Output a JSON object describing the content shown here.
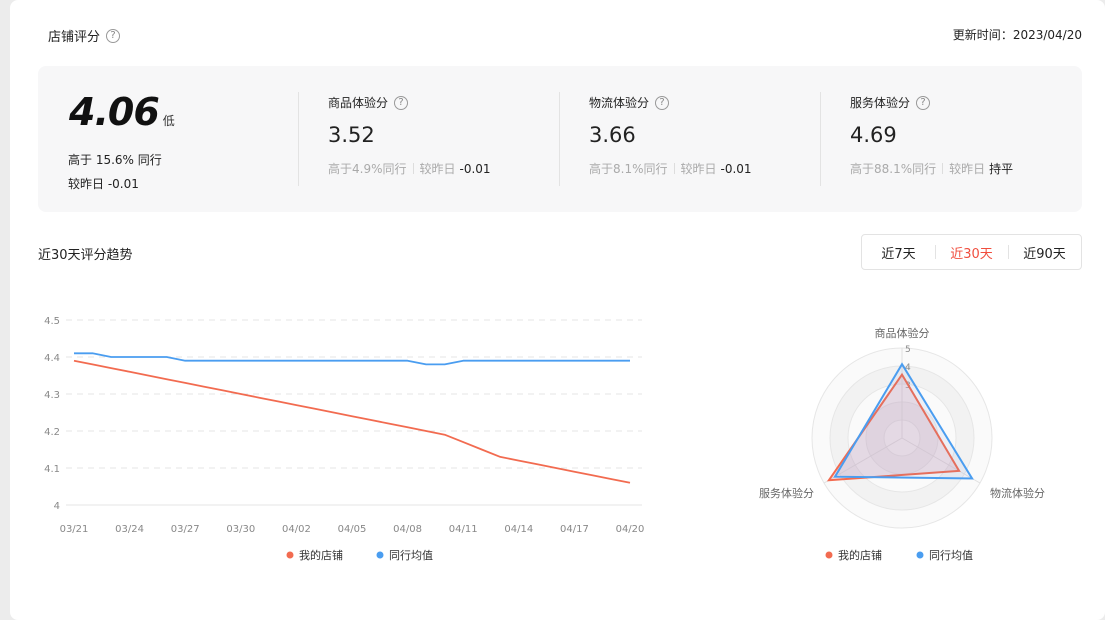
{
  "header": {
    "title": "店铺评分",
    "update_label": "更新时间",
    "update_value": "2023/04/20"
  },
  "summary": {
    "score": "4.06",
    "level": "低",
    "compare_peers": "高于 15.6% 同行",
    "vs_yesterday_label": "较昨日",
    "vs_yesterday_value": "-0.01",
    "metrics": [
      {
        "title": "商品体验分",
        "value": "3.52",
        "peer_text": "高于4.9%同行",
        "delta_label": "较昨日",
        "delta_value": "-0.01"
      },
      {
        "title": "物流体验分",
        "value": "3.66",
        "peer_text": "高于8.1%同行",
        "delta_label": "较昨日",
        "delta_value": "-0.01"
      },
      {
        "title": "服务体验分",
        "value": "4.69",
        "peer_text": "高于88.1%同行",
        "delta_label": "较昨日",
        "delta_value": "持平"
      }
    ]
  },
  "trend": {
    "title": "近30天评分趋势",
    "ranges": [
      "近7天",
      "近30天",
      "近90天"
    ],
    "active_range": "近30天"
  },
  "colors": {
    "mine": "#f26b50",
    "peer": "#4a9df0",
    "active": "#f04e3e"
  },
  "chart_data": [
    {
      "type": "line",
      "x": [
        "03/21",
        "03/22",
        "03/23",
        "03/24",
        "03/25",
        "03/26",
        "03/27",
        "03/28",
        "03/29",
        "03/30",
        "03/31",
        "04/01",
        "04/02",
        "04/03",
        "04/04",
        "04/05",
        "04/06",
        "04/07",
        "04/08",
        "04/09",
        "04/10",
        "04/11",
        "04/12",
        "04/13",
        "04/14",
        "04/15",
        "04/16",
        "04/17",
        "04/18",
        "04/19",
        "04/20"
      ],
      "x_ticks": [
        "03/21",
        "03/24",
        "03/27",
        "03/30",
        "04/02",
        "04/05",
        "04/08",
        "04/11",
        "04/14",
        "04/17",
        "04/20"
      ],
      "y_ticks": [
        "4",
        "4.1",
        "4.2",
        "4.3",
        "4.4",
        "4.5"
      ],
      "ylim": [
        4.0,
        4.5
      ],
      "series": [
        {
          "name": "我的店铺",
          "values": [
            4.39,
            4.38,
            4.37,
            4.36,
            4.35,
            4.34,
            4.33,
            4.32,
            4.31,
            4.3,
            4.29,
            4.28,
            4.27,
            4.26,
            4.25,
            4.24,
            4.23,
            4.22,
            4.21,
            4.2,
            4.19,
            4.17,
            4.15,
            4.13,
            4.12,
            4.11,
            4.1,
            4.09,
            4.08,
            4.07,
            4.06
          ]
        },
        {
          "name": "同行均值",
          "values": [
            4.41,
            4.41,
            4.4,
            4.4,
            4.4,
            4.4,
            4.39,
            4.39,
            4.39,
            4.39,
            4.39,
            4.39,
            4.39,
            4.39,
            4.39,
            4.39,
            4.39,
            4.39,
            4.39,
            4.38,
            4.38,
            4.39,
            4.39,
            4.39,
            4.39,
            4.39,
            4.39,
            4.39,
            4.39,
            4.39,
            4.39
          ]
        }
      ],
      "legend": "bottom-center",
      "grid": true
    },
    {
      "type": "radar",
      "axes": [
        "商品体验分",
        "物流体验分",
        "服务体验分"
      ],
      "max": 5,
      "tick_labels": [
        "5",
        "4",
        "3"
      ],
      "series": [
        {
          "name": "我的店铺",
          "values": [
            3.52,
            3.66,
            4.69
          ]
        },
        {
          "name": "同行均值",
          "values": [
            4.1,
            4.5,
            4.3
          ]
        }
      ],
      "legend": "bottom-center"
    }
  ]
}
